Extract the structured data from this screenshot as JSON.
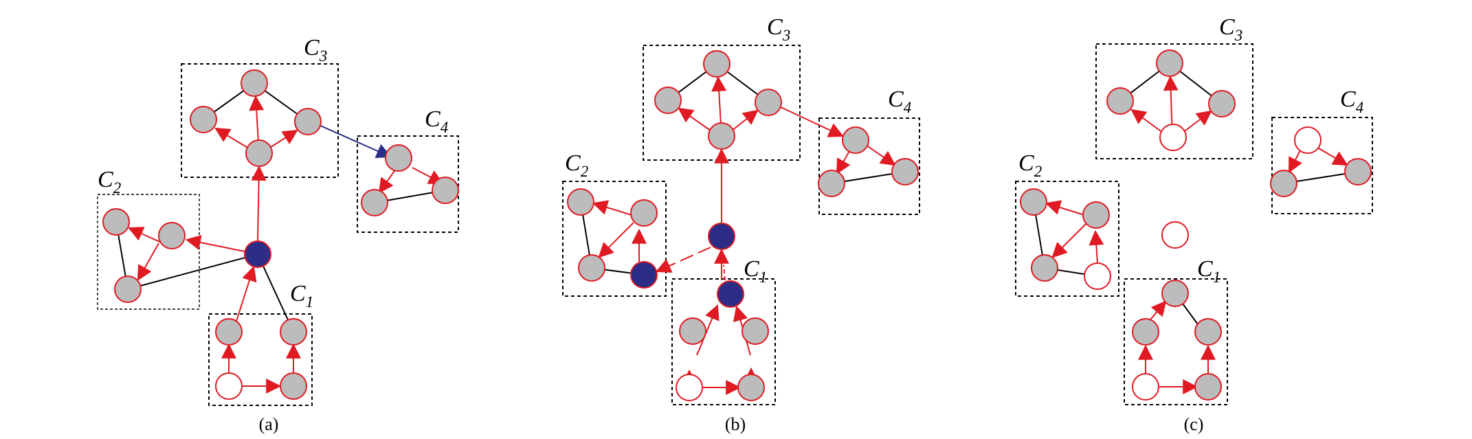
{
  "cluster_labels": {
    "c1": "C",
    "c1_sub": "1",
    "c2": "C",
    "c2_sub": "2",
    "c3": "C",
    "c3_sub": "3",
    "c4": "C",
    "c4_sub": "4"
  },
  "panel_captions": {
    "a": "(a)",
    "b": "(b)",
    "c": "(c)"
  },
  "colors": {
    "node_gray": "#bcbcbc",
    "node_blue": "#2b2d86",
    "node_empty": "#ffffff",
    "node_stroke": "#e01a22",
    "edge_red": "#e01a22",
    "edge_blue": "#2b2d86",
    "edge_black": "#000000",
    "box_border": "#000000"
  }
}
